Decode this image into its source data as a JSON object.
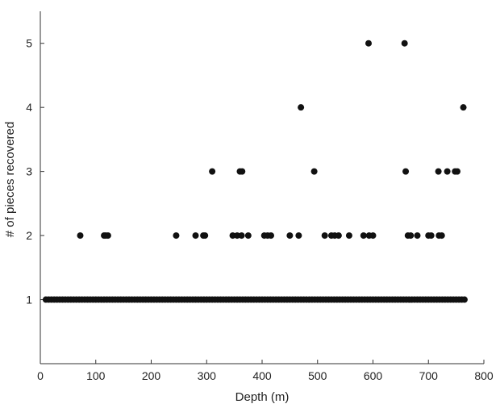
{
  "chart_data": {
    "type": "scatter",
    "title": "",
    "xlabel": "Depth (m)",
    "ylabel": "# of pieces recovered",
    "xlim": [
      0,
      800
    ],
    "ylim": [
      0,
      5.5
    ],
    "xticks": [
      0,
      100,
      200,
      300,
      400,
      500,
      600,
      700,
      800
    ],
    "yticks": [
      1,
      2,
      3,
      4,
      5
    ],
    "grid": false,
    "marker_color": "#111111",
    "series": [
      {
        "points": [
          [
            72,
            2
          ],
          [
            115,
            2
          ],
          [
            118,
            2
          ],
          [
            122,
            2
          ],
          [
            245,
            2
          ],
          [
            280,
            2
          ],
          [
            294,
            2
          ],
          [
            297,
            2
          ],
          [
            347,
            2
          ],
          [
            355,
            2
          ],
          [
            363,
            2
          ],
          [
            375,
            2
          ],
          [
            404,
            2
          ],
          [
            410,
            2
          ],
          [
            416,
            2
          ],
          [
            450,
            2
          ],
          [
            466,
            2
          ],
          [
            513,
            2
          ],
          [
            525,
            2
          ],
          [
            531,
            2
          ],
          [
            538,
            2
          ],
          [
            557,
            2
          ],
          [
            583,
            2
          ],
          [
            593,
            2
          ],
          [
            600,
            2
          ],
          [
            663,
            2
          ],
          [
            668,
            2
          ],
          [
            680,
            2
          ],
          [
            700,
            2
          ],
          [
            705,
            2
          ],
          [
            719,
            2
          ],
          [
            724,
            2
          ],
          [
            310,
            3
          ],
          [
            360,
            3
          ],
          [
            364,
            3
          ],
          [
            494,
            3
          ],
          [
            659,
            3
          ],
          [
            718,
            3
          ],
          [
            734,
            3
          ],
          [
            748,
            3
          ],
          [
            752,
            3
          ],
          [
            470,
            4
          ],
          [
            763,
            4
          ],
          [
            592,
            5
          ],
          [
            657,
            5
          ],
          [
            10,
            1
          ],
          [
            15,
            1
          ],
          [
            20,
            1
          ],
          [
            25,
            1
          ],
          [
            30,
            1
          ],
          [
            35,
            1
          ],
          [
            40,
            1
          ],
          [
            45,
            1
          ],
          [
            50,
            1
          ],
          [
            55,
            1
          ],
          [
            60,
            1
          ],
          [
            65,
            1
          ],
          [
            70,
            1
          ],
          [
            75,
            1
          ],
          [
            80,
            1
          ],
          [
            85,
            1
          ],
          [
            90,
            1
          ],
          [
            95,
            1
          ],
          [
            100,
            1
          ],
          [
            105,
            1
          ],
          [
            110,
            1
          ],
          [
            115,
            1
          ],
          [
            120,
            1
          ],
          [
            125,
            1
          ],
          [
            130,
            1
          ],
          [
            135,
            1
          ],
          [
            140,
            1
          ],
          [
            145,
            1
          ],
          [
            150,
            1
          ],
          [
            155,
            1
          ],
          [
            160,
            1
          ],
          [
            165,
            1
          ],
          [
            170,
            1
          ],
          [
            175,
            1
          ],
          [
            180,
            1
          ],
          [
            185,
            1
          ],
          [
            190,
            1
          ],
          [
            195,
            1
          ],
          [
            200,
            1
          ],
          [
            205,
            1
          ],
          [
            210,
            1
          ],
          [
            215,
            1
          ],
          [
            220,
            1
          ],
          [
            225,
            1
          ],
          [
            230,
            1
          ],
          [
            235,
            1
          ],
          [
            240,
            1
          ],
          [
            245,
            1
          ],
          [
            250,
            1
          ],
          [
            255,
            1
          ],
          [
            260,
            1
          ],
          [
            265,
            1
          ],
          [
            270,
            1
          ],
          [
            275,
            1
          ],
          [
            280,
            1
          ],
          [
            285,
            1
          ],
          [
            290,
            1
          ],
          [
            295,
            1
          ],
          [
            300,
            1
          ],
          [
            305,
            1
          ],
          [
            310,
            1
          ],
          [
            315,
            1
          ],
          [
            320,
            1
          ],
          [
            325,
            1
          ],
          [
            330,
            1
          ],
          [
            335,
            1
          ],
          [
            340,
            1
          ],
          [
            345,
            1
          ],
          [
            350,
            1
          ],
          [
            355,
            1
          ],
          [
            360,
            1
          ],
          [
            365,
            1
          ],
          [
            370,
            1
          ],
          [
            375,
            1
          ],
          [
            380,
            1
          ],
          [
            385,
            1
          ],
          [
            390,
            1
          ],
          [
            395,
            1
          ],
          [
            400,
            1
          ],
          [
            405,
            1
          ],
          [
            410,
            1
          ],
          [
            415,
            1
          ],
          [
            420,
            1
          ],
          [
            425,
            1
          ],
          [
            430,
            1
          ],
          [
            435,
            1
          ],
          [
            440,
            1
          ],
          [
            445,
            1
          ],
          [
            450,
            1
          ],
          [
            455,
            1
          ],
          [
            460,
            1
          ],
          [
            465,
            1
          ],
          [
            470,
            1
          ],
          [
            475,
            1
          ],
          [
            480,
            1
          ],
          [
            485,
            1
          ],
          [
            490,
            1
          ],
          [
            495,
            1
          ],
          [
            500,
            1
          ],
          [
            505,
            1
          ],
          [
            510,
            1
          ],
          [
            515,
            1
          ],
          [
            520,
            1
          ],
          [
            525,
            1
          ],
          [
            530,
            1
          ],
          [
            535,
            1
          ],
          [
            540,
            1
          ],
          [
            545,
            1
          ],
          [
            550,
            1
          ],
          [
            555,
            1
          ],
          [
            560,
            1
          ],
          [
            565,
            1
          ],
          [
            570,
            1
          ],
          [
            575,
            1
          ],
          [
            580,
            1
          ],
          [
            585,
            1
          ],
          [
            590,
            1
          ],
          [
            595,
            1
          ],
          [
            600,
            1
          ],
          [
            605,
            1
          ],
          [
            610,
            1
          ],
          [
            615,
            1
          ],
          [
            620,
            1
          ],
          [
            625,
            1
          ],
          [
            630,
            1
          ],
          [
            635,
            1
          ],
          [
            640,
            1
          ],
          [
            645,
            1
          ],
          [
            650,
            1
          ],
          [
            655,
            1
          ],
          [
            660,
            1
          ],
          [
            665,
            1
          ],
          [
            670,
            1
          ],
          [
            675,
            1
          ],
          [
            680,
            1
          ],
          [
            685,
            1
          ],
          [
            690,
            1
          ],
          [
            695,
            1
          ],
          [
            700,
            1
          ],
          [
            705,
            1
          ],
          [
            710,
            1
          ],
          [
            715,
            1
          ],
          [
            720,
            1
          ],
          [
            725,
            1
          ],
          [
            730,
            1
          ],
          [
            735,
            1
          ],
          [
            740,
            1
          ],
          [
            745,
            1
          ],
          [
            750,
            1
          ],
          [
            755,
            1
          ],
          [
            760,
            1
          ],
          [
            765,
            1
          ]
        ]
      }
    ]
  }
}
